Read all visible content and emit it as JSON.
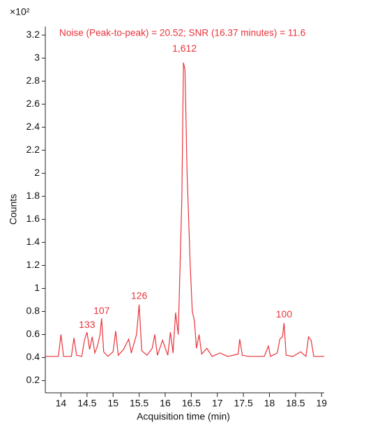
{
  "chart_data": {
    "type": "line",
    "annotation_title": "Noise (Peak-to-peak) = 20.52; SNR (16.37 minutes) = 11.6",
    "y_multiplier": "×10²",
    "x_label": "Acquisition time (min)",
    "y_label": "Counts",
    "xlim": [
      13.7,
      19.05
    ],
    "ylim": [
      0.1,
      3.25
    ],
    "xticks": [
      14,
      14.5,
      15,
      15.5,
      16,
      16.5,
      17,
      17.5,
      18,
      18.5,
      19
    ],
    "yticks": [
      0.2,
      0.4,
      0.6,
      0.8,
      1,
      1.2,
      1.4,
      1.6,
      1.8,
      2,
      2.2,
      2.4,
      2.6,
      2.8,
      3,
      3.2
    ],
    "color": "#e8333a",
    "x": [
      13.7,
      13.95,
      14.0,
      14.05,
      14.2,
      14.25,
      14.3,
      14.4,
      14.45,
      14.5,
      14.55,
      14.6,
      14.65,
      14.7,
      14.75,
      14.78,
      14.82,
      14.9,
      15.0,
      15.05,
      15.1,
      15.2,
      15.3,
      15.35,
      15.45,
      15.5,
      15.55,
      15.65,
      15.75,
      15.8,
      15.85,
      15.95,
      16.05,
      16.1,
      16.15,
      16.2,
      16.25,
      16.28,
      16.32,
      16.35,
      16.38,
      16.42,
      16.45,
      16.48,
      16.52,
      16.56,
      16.6,
      16.65,
      16.7,
      16.8,
      16.9,
      17.05,
      17.2,
      17.4,
      17.43,
      17.48,
      17.6,
      17.9,
      17.98,
      18.02,
      18.15,
      18.2,
      18.25,
      18.28,
      18.32,
      18.45,
      18.6,
      18.7,
      18.75,
      18.8,
      18.85,
      19.05
    ],
    "values": [
      0.41,
      0.41,
      0.6,
      0.41,
      0.41,
      0.57,
      0.42,
      0.41,
      0.55,
      0.62,
      0.47,
      0.58,
      0.44,
      0.5,
      0.6,
      0.74,
      0.45,
      0.41,
      0.45,
      0.63,
      0.42,
      0.47,
      0.56,
      0.44,
      0.6,
      0.86,
      0.46,
      0.42,
      0.48,
      0.6,
      0.42,
      0.55,
      0.42,
      0.62,
      0.44,
      0.79,
      0.6,
      1.1,
      1.8,
      2.96,
      2.9,
      2.0,
      1.6,
      1.2,
      0.8,
      0.72,
      0.48,
      0.6,
      0.43,
      0.48,
      0.41,
      0.44,
      0.41,
      0.43,
      0.56,
      0.42,
      0.41,
      0.41,
      0.5,
      0.41,
      0.44,
      0.56,
      0.58,
      0.7,
      0.42,
      0.41,
      0.45,
      0.41,
      0.58,
      0.55,
      0.41,
      0.41
    ],
    "peak_labels": [
      {
        "x": 14.5,
        "y": 0.68,
        "text": "133"
      },
      {
        "x": 14.78,
        "y": 0.8,
        "text": "107"
      },
      {
        "x": 15.5,
        "y": 0.93,
        "text": "126"
      },
      {
        "x": 16.37,
        "y": 3.08,
        "text": "1,612"
      },
      {
        "x": 18.28,
        "y": 0.77,
        "text": "100"
      }
    ]
  }
}
